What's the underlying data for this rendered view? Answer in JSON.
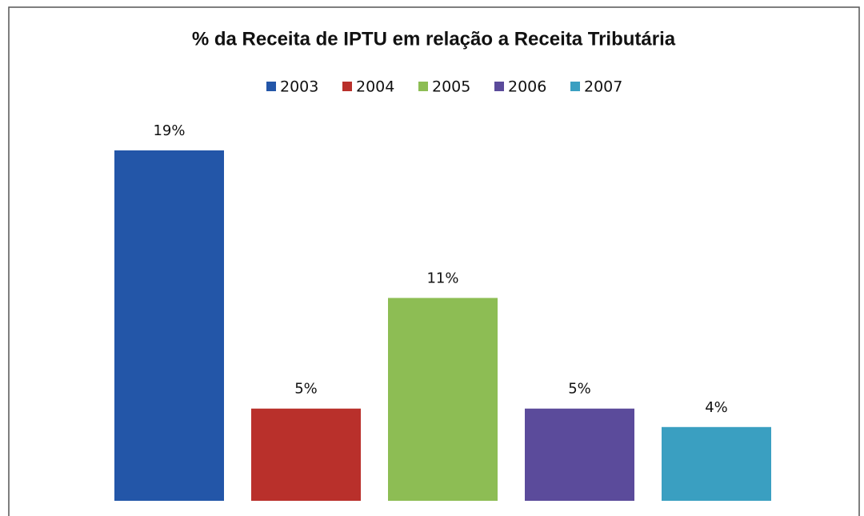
{
  "chart_data": {
    "type": "bar",
    "title": "% da Receita de IPTU em relação a Receita Tributária",
    "series": [
      {
        "name": "2003",
        "color": "#2356a8",
        "values": [
          19
        ],
        "value_labels": [
          "19%"
        ]
      },
      {
        "name": "2004",
        "color": "#b9302b",
        "values": [
          5
        ],
        "value_labels": [
          "5%"
        ]
      },
      {
        "name": "2005",
        "color": "#8dbd54",
        "values": [
          11
        ],
        "value_labels": [
          "11%"
        ]
      },
      {
        "name": "2006",
        "color": "#5b4b9b",
        "values": [
          5
        ],
        "value_labels": [
          "5%"
        ]
      },
      {
        "name": "2007",
        "color": "#3a9fc1",
        "values": [
          4
        ],
        "value_labels": [
          "4%"
        ]
      }
    ],
    "legend": "top"
  }
}
